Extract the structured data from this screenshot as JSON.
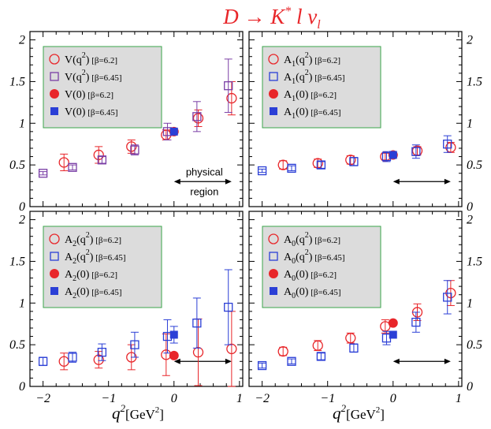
{
  "figure": {
    "title": {
      "main": "D → K",
      "star": "*",
      "rest": " l ν",
      "sub": "l"
    },
    "xlabel": {
      "q": "q",
      "exp": "2",
      "unit": "[GeV",
      "unitexp": "2",
      "close": "]"
    }
  },
  "colors": {
    "beta62": "#e8262a",
    "beta645": "#2b3fd6",
    "v645": "#7a3fa6",
    "legendbg": "#dcdcdc",
    "legendborder": "#3aa54a"
  },
  "chart_data": [
    {
      "type": "scatter",
      "panel": "V",
      "xlim": [
        -2.2,
        1.05
      ],
      "ylim": [
        0,
        2.1
      ],
      "xticks": [
        "−2",
        "−1",
        "0",
        "1"
      ],
      "yticks": [
        "0",
        "0.5",
        "1",
        "1.5",
        "2"
      ],
      "legend": [
        {
          "sym": "V",
          "paren": "(q",
          "exp": "2",
          "close": ")",
          "beta": "[β=6.2]"
        },
        {
          "sym": "V",
          "paren": "(q",
          "exp": "2",
          "close": ")",
          "beta": "[β=6.45]"
        },
        {
          "sym": "V",
          "paren": "(0)",
          "beta": "[β=6.2]"
        },
        {
          "sym": "V",
          "paren": "(0)",
          "beta": "[β=6.45]"
        }
      ],
      "annotation": [
        "physical",
        "region"
      ],
      "series": [
        {
          "marker": "circle-open",
          "beta": "6.2",
          "x": [
            -1.68,
            -1.15,
            -0.65,
            -0.12,
            0.37,
            0.88
          ],
          "y": [
            0.53,
            0.62,
            0.72,
            0.86,
            1.06,
            1.3
          ],
          "err": [
            0.1,
            0.1,
            0.08,
            0.06,
            0.1,
            0.2
          ]
        },
        {
          "marker": "square-open",
          "beta": "6.45",
          "x": [
            -2.0,
            -1.55,
            -1.1,
            -0.6,
            -0.1,
            0.35,
            0.83
          ],
          "y": [
            0.4,
            0.47,
            0.56,
            0.68,
            0.9,
            1.08,
            1.45
          ],
          "err": [
            0.02,
            0.03,
            0.04,
            0.06,
            0.1,
            0.18,
            0.32
          ]
        },
        {
          "marker": "circle-filled",
          "beta": "6.2",
          "x": [
            0
          ],
          "y": [
            0.9
          ],
          "err": [
            0.0
          ]
        },
        {
          "marker": "square-filled",
          "beta": "6.45",
          "x": [
            0
          ],
          "y": [
            0.9
          ],
          "err": [
            0.0
          ]
        }
      ]
    },
    {
      "type": "scatter",
      "panel": "A1",
      "xlim": [
        -2.2,
        1.05
      ],
      "ylim": [
        0,
        2.1
      ],
      "xticks": [
        "−2",
        "−1",
        "0",
        "1"
      ],
      "yticks": [
        "0",
        "0.5",
        "1",
        "1.5",
        "2"
      ],
      "legend": [
        {
          "sym": "A",
          "sub": "1",
          "paren": "(q",
          "exp": "2",
          "close": ")",
          "beta": "[β=6.2]"
        },
        {
          "sym": "A",
          "sub": "1",
          "paren": "(q",
          "exp": "2",
          "close": ")",
          "beta": "[β=6.45]"
        },
        {
          "sym": "A",
          "sub": "1",
          "paren": "(0)",
          "beta": "[β=6.2]"
        },
        {
          "sym": "A",
          "sub": "1",
          "paren": "(0)",
          "beta": "[β=6.45]"
        }
      ],
      "series": [
        {
          "marker": "circle-open",
          "beta": "6.2",
          "x": [
            -1.68,
            -1.15,
            -0.65,
            -0.12,
            0.37,
            0.88
          ],
          "y": [
            0.5,
            0.52,
            0.56,
            0.6,
            0.67,
            0.71
          ],
          "err": [
            0.05,
            0.05,
            0.05,
            0.04,
            0.05,
            0.06
          ]
        },
        {
          "marker": "square-open",
          "beta": "6.45",
          "x": [
            -2.0,
            -1.55,
            -1.1,
            -0.6,
            -0.1,
            0.35,
            0.83
          ],
          "y": [
            0.43,
            0.46,
            0.5,
            0.54,
            0.6,
            0.66,
            0.75
          ],
          "err": [
            0.02,
            0.03,
            0.04,
            0.05,
            0.06,
            0.08,
            0.1
          ]
        },
        {
          "marker": "circle-filled",
          "beta": "6.2",
          "x": [
            0
          ],
          "y": [
            0.62
          ],
          "err": [
            0.0
          ]
        },
        {
          "marker": "square-filled",
          "beta": "6.45",
          "x": [
            0
          ],
          "y": [
            0.62
          ],
          "err": [
            0.0
          ]
        }
      ]
    },
    {
      "type": "scatter",
      "panel": "A2",
      "xlim": [
        -2.2,
        1.05
      ],
      "ylim": [
        0,
        2.1
      ],
      "xticks": [
        "−2",
        "−1",
        "0",
        "1"
      ],
      "yticks": [
        "0",
        "0.5",
        "1",
        "1.5",
        "2"
      ],
      "legend": [
        {
          "sym": "A",
          "sub": "2",
          "paren": "(q",
          "exp": "2",
          "close": ")",
          "beta": "[β=6.2]"
        },
        {
          "sym": "A",
          "sub": "2",
          "paren": "(q",
          "exp": "2",
          "close": ")",
          "beta": "[β=6.45]"
        },
        {
          "sym": "A",
          "sub": "2",
          "paren": "(0)",
          "beta": "[β=6.2]"
        },
        {
          "sym": "A",
          "sub": "2",
          "paren": "(0)",
          "beta": "[β=6.45]"
        }
      ],
      "series": [
        {
          "marker": "circle-open",
          "beta": "6.2",
          "x": [
            -1.68,
            -1.15,
            -0.65,
            -0.12,
            0.37,
            0.88
          ],
          "y": [
            0.3,
            0.32,
            0.35,
            0.38,
            0.41,
            0.45
          ],
          "err": [
            0.1,
            0.1,
            0.15,
            0.25,
            0.4,
            0.45
          ]
        },
        {
          "marker": "square-open",
          "beta": "6.45",
          "x": [
            -2.0,
            -1.55,
            -1.1,
            -0.6,
            -0.1,
            0.35,
            0.83
          ],
          "y": [
            0.3,
            0.35,
            0.41,
            0.5,
            0.6,
            0.76,
            0.95
          ],
          "err": [
            0.05,
            0.06,
            0.1,
            0.15,
            0.2,
            0.3,
            0.45
          ]
        },
        {
          "marker": "circle-filled",
          "beta": "6.2",
          "x": [
            0
          ],
          "y": [
            0.37
          ],
          "err": [
            0.0
          ]
        },
        {
          "marker": "square-filled",
          "beta": "6.45",
          "x": [
            0
          ],
          "y": [
            0.62
          ],
          "err": [
            0.1
          ]
        }
      ]
    },
    {
      "type": "scatter",
      "panel": "A0",
      "xlim": [
        -2.2,
        1.05
      ],
      "ylim": [
        0,
        2.1
      ],
      "xticks": [
        "−2",
        "−1",
        "0",
        "1"
      ],
      "yticks": [
        "0",
        "0.5",
        "1",
        "1.5",
        "2"
      ],
      "legend": [
        {
          "sym": "A",
          "sub": "0",
          "paren": "(q",
          "exp": "2",
          "close": ")",
          "beta": "[β=6.2]"
        },
        {
          "sym": "A",
          "sub": "0",
          "paren": "(q",
          "exp": "2",
          "close": ")",
          "beta": "[β=6.45]"
        },
        {
          "sym": "A",
          "sub": "0",
          "paren": "(0)",
          "beta": "[β=6.2]"
        },
        {
          "sym": "A",
          "sub": "0",
          "paren": "(0)",
          "beta": "[β=6.45]"
        }
      ],
      "series": [
        {
          "marker": "circle-open",
          "beta": "6.2",
          "x": [
            -1.68,
            -1.15,
            -0.65,
            -0.12,
            0.37,
            0.88
          ],
          "y": [
            0.42,
            0.49,
            0.58,
            0.72,
            0.89,
            1.12
          ],
          "err": [
            0.05,
            0.06,
            0.06,
            0.08,
            0.1,
            0.15
          ]
        },
        {
          "marker": "square-open",
          "beta": "6.45",
          "x": [
            -2.0,
            -1.55,
            -1.1,
            -0.6,
            -0.1,
            0.35,
            0.83
          ],
          "y": [
            0.25,
            0.3,
            0.36,
            0.46,
            0.58,
            0.77,
            1.07
          ],
          "err": [
            0.03,
            0.03,
            0.04,
            0.05,
            0.08,
            0.12,
            0.2
          ]
        },
        {
          "marker": "circle-filled",
          "beta": "6.2",
          "x": [
            0
          ],
          "y": [
            0.76
          ],
          "err": [
            0.0
          ]
        },
        {
          "marker": "square-filled",
          "beta": "6.45",
          "x": [
            0
          ],
          "y": [
            0.62
          ],
          "err": [
            0.0
          ]
        }
      ]
    }
  ]
}
